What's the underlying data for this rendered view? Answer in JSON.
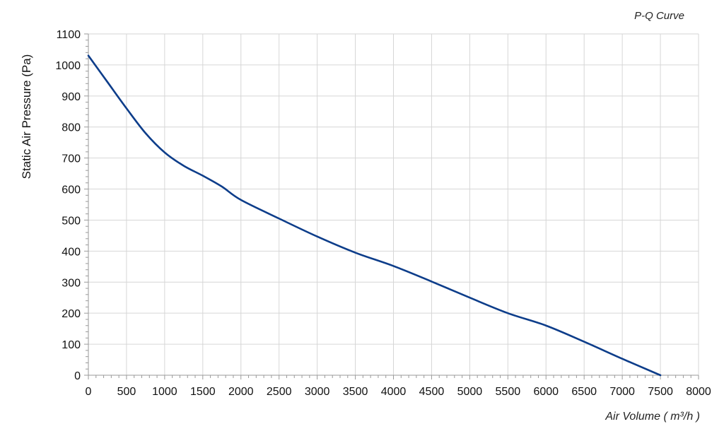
{
  "chart_data": {
    "type": "line",
    "title": "P-Q Curve",
    "xlabel": "Air Volume ( m³/h )",
    "ylabel": "Static Air Pressure  (Pa)",
    "xlim": [
      0,
      8000
    ],
    "ylim": [
      0,
      1100
    ],
    "x_ticks": [
      0,
      500,
      1000,
      1500,
      2000,
      2500,
      3000,
      3500,
      4000,
      4500,
      5000,
      5500,
      6000,
      6500,
      7000,
      7500,
      8000
    ],
    "y_ticks": [
      0,
      100,
      200,
      300,
      400,
      500,
      600,
      700,
      800,
      900,
      1000,
      1100
    ],
    "grid": true,
    "series": [
      {
        "color": "#0d3d8a",
        "x": [
          0,
          250,
          500,
          750,
          1000,
          1250,
          1500,
          1750,
          2000,
          2500,
          3000,
          3500,
          4000,
          4500,
          5000,
          5500,
          6000,
          6500,
          7000,
          7500
        ],
        "y": [
          1030,
          945,
          860,
          780,
          718,
          675,
          643,
          608,
          565,
          505,
          447,
          395,
          352,
          302,
          250,
          200,
          160,
          108,
          53,
          0
        ]
      }
    ]
  }
}
